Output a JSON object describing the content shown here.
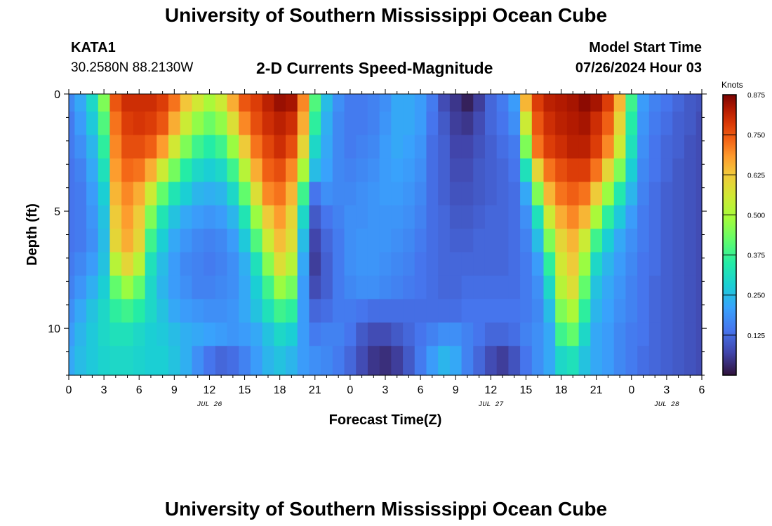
{
  "header": {
    "title": "University of Southern Mississippi Ocean Cube",
    "station": "KATA1",
    "coords": "30.2580N  88.2130W",
    "plot_title": "2-D Currents Speed-Magnitude",
    "model_label": "Model Start Time",
    "model_time": "07/26/2024 Hour 03"
  },
  "footer": {
    "title": "University of Southern Mississippi Ocean Cube"
  },
  "chart_data": {
    "type": "heatmap",
    "title": "2-D Currents Speed-Magnitude",
    "xlabel": "Forecast Time(Z)",
    "ylabel": "Depth (ft)",
    "x_unit": "forecast hour from 07/26/2024 00Z",
    "xlim": [
      0,
      54
    ],
    "ylim": [
      0,
      12
    ],
    "y_reversed": true,
    "x_ticks": [
      0,
      3,
      6,
      9,
      12,
      15,
      18,
      21,
      24,
      27,
      30,
      33,
      36,
      39,
      42,
      45,
      48,
      51,
      54
    ],
    "x_tick_labels": [
      "0",
      "3",
      "6",
      "9",
      "12",
      "15",
      "18",
      "21",
      "0",
      "3",
      "6",
      "9",
      "12",
      "15",
      "18",
      "21",
      "0",
      "3",
      "6"
    ],
    "y_ticks": [
      0,
      5,
      10
    ],
    "y_tick_labels": [
      "0",
      "5",
      "10"
    ],
    "date_labels": [
      {
        "hour": 12,
        "label": "JUL 26"
      },
      {
        "hour": 36,
        "label": "JUL 27"
      },
      {
        "hour": 51,
        "label": "JUL 28"
      }
    ],
    "colorbar": {
      "label": "Knots",
      "min": 0,
      "max": 0.875,
      "ticks": [
        0.125,
        0.25,
        0.375,
        0.5,
        0.625,
        0.75,
        0.875
      ],
      "tick_labels": [
        "0.125",
        "0.250",
        "0.375",
        "0.500",
        "0.625",
        "0.750",
        "0.875"
      ]
    },
    "depths": [
      0.25,
      1.25,
      2.25,
      3.25,
      4.25,
      5.25,
      6.25,
      7.25,
      8.25,
      9.25,
      10.25,
      11.25
    ],
    "hours": [
      0,
      1,
      2,
      3,
      4,
      5,
      6,
      7,
      8,
      9,
      10,
      11,
      12,
      13,
      14,
      15,
      16,
      17,
      18,
      19,
      20,
      21,
      22,
      23,
      24,
      25,
      26,
      27,
      28,
      29,
      30,
      31,
      32,
      33,
      34,
      35,
      36,
      37,
      38,
      39,
      40,
      41,
      42,
      43,
      44,
      45,
      46,
      47,
      48,
      49,
      50,
      51,
      52,
      53,
      54
    ],
    "speed_knots": [
      [
        0.17,
        0.22,
        0.3,
        0.45,
        0.75,
        0.8,
        0.8,
        0.8,
        0.78,
        0.72,
        0.63,
        0.56,
        0.5,
        0.55,
        0.66,
        0.75,
        0.78,
        0.82,
        0.85,
        0.84,
        0.7,
        0.4,
        0.25,
        0.18,
        0.15,
        0.15,
        0.16,
        0.18,
        0.22,
        0.22,
        0.2,
        0.15,
        0.08,
        0.05,
        0.02,
        0.06,
        0.12,
        0.15,
        0.2,
        0.65,
        0.78,
        0.82,
        0.83,
        0.84,
        0.86,
        0.84,
        0.78,
        0.65,
        0.38,
        0.2,
        0.16,
        0.14,
        0.12,
        0.1,
        0.09
      ],
      [
        0.15,
        0.2,
        0.27,
        0.4,
        0.72,
        0.78,
        0.79,
        0.78,
        0.75,
        0.66,
        0.55,
        0.47,
        0.43,
        0.47,
        0.58,
        0.7,
        0.76,
        0.8,
        0.82,
        0.8,
        0.66,
        0.36,
        0.23,
        0.17,
        0.15,
        0.15,
        0.16,
        0.19,
        0.22,
        0.22,
        0.2,
        0.14,
        0.1,
        0.06,
        0.05,
        0.08,
        0.12,
        0.14,
        0.18,
        0.55,
        0.75,
        0.8,
        0.82,
        0.83,
        0.84,
        0.8,
        0.74,
        0.6,
        0.35,
        0.19,
        0.15,
        0.13,
        0.11,
        0.1,
        0.08
      ],
      [
        0.15,
        0.18,
        0.24,
        0.36,
        0.7,
        0.76,
        0.76,
        0.74,
        0.68,
        0.56,
        0.45,
        0.38,
        0.35,
        0.38,
        0.48,
        0.62,
        0.72,
        0.77,
        0.8,
        0.76,
        0.6,
        0.3,
        0.22,
        0.17,
        0.15,
        0.16,
        0.17,
        0.2,
        0.22,
        0.21,
        0.19,
        0.13,
        0.11,
        0.07,
        0.07,
        0.09,
        0.11,
        0.13,
        0.15,
        0.45,
        0.72,
        0.78,
        0.8,
        0.82,
        0.82,
        0.78,
        0.7,
        0.55,
        0.32,
        0.18,
        0.14,
        0.12,
        0.11,
        0.09,
        0.08
      ],
      [
        0.14,
        0.16,
        0.22,
        0.32,
        0.68,
        0.73,
        0.72,
        0.66,
        0.55,
        0.44,
        0.35,
        0.3,
        0.28,
        0.3,
        0.38,
        0.52,
        0.66,
        0.74,
        0.76,
        0.7,
        0.5,
        0.25,
        0.21,
        0.17,
        0.16,
        0.17,
        0.18,
        0.2,
        0.21,
        0.2,
        0.18,
        0.13,
        0.11,
        0.08,
        0.08,
        0.1,
        0.11,
        0.12,
        0.14,
        0.32,
        0.6,
        0.72,
        0.76,
        0.78,
        0.78,
        0.72,
        0.6,
        0.45,
        0.28,
        0.17,
        0.14,
        0.12,
        0.1,
        0.09,
        0.08
      ],
      [
        0.14,
        0.15,
        0.2,
        0.28,
        0.65,
        0.7,
        0.66,
        0.55,
        0.42,
        0.33,
        0.28,
        0.24,
        0.23,
        0.24,
        0.3,
        0.42,
        0.58,
        0.7,
        0.72,
        0.65,
        0.38,
        0.14,
        0.18,
        0.17,
        0.17,
        0.18,
        0.19,
        0.2,
        0.2,
        0.19,
        0.17,
        0.13,
        0.11,
        0.09,
        0.09,
        0.1,
        0.11,
        0.12,
        0.13,
        0.22,
        0.45,
        0.65,
        0.72,
        0.74,
        0.72,
        0.62,
        0.48,
        0.34,
        0.24,
        0.16,
        0.13,
        0.11,
        0.1,
        0.09,
        0.08
      ],
      [
        0.14,
        0.15,
        0.19,
        0.26,
        0.62,
        0.68,
        0.62,
        0.45,
        0.33,
        0.26,
        0.22,
        0.2,
        0.19,
        0.2,
        0.24,
        0.33,
        0.48,
        0.62,
        0.68,
        0.6,
        0.3,
        0.1,
        0.14,
        0.16,
        0.18,
        0.18,
        0.19,
        0.19,
        0.19,
        0.18,
        0.16,
        0.13,
        0.12,
        0.1,
        0.1,
        0.11,
        0.12,
        0.12,
        0.13,
        0.18,
        0.32,
        0.55,
        0.66,
        0.7,
        0.65,
        0.5,
        0.36,
        0.27,
        0.2,
        0.15,
        0.13,
        0.11,
        0.1,
        0.09,
        0.08
      ],
      [
        0.14,
        0.15,
        0.18,
        0.25,
        0.6,
        0.66,
        0.6,
        0.38,
        0.28,
        0.22,
        0.19,
        0.17,
        0.16,
        0.17,
        0.2,
        0.27,
        0.4,
        0.55,
        0.64,
        0.58,
        0.25,
        0.07,
        0.12,
        0.15,
        0.18,
        0.19,
        0.19,
        0.19,
        0.18,
        0.17,
        0.15,
        0.13,
        0.12,
        0.11,
        0.11,
        0.12,
        0.12,
        0.12,
        0.13,
        0.16,
        0.25,
        0.45,
        0.6,
        0.65,
        0.55,
        0.38,
        0.28,
        0.22,
        0.18,
        0.15,
        0.13,
        0.11,
        0.1,
        0.09,
        0.08
      ],
      [
        0.15,
        0.17,
        0.2,
        0.26,
        0.52,
        0.6,
        0.52,
        0.32,
        0.25,
        0.2,
        0.17,
        0.16,
        0.15,
        0.16,
        0.18,
        0.23,
        0.32,
        0.46,
        0.58,
        0.52,
        0.22,
        0.06,
        0.11,
        0.15,
        0.18,
        0.19,
        0.19,
        0.18,
        0.17,
        0.16,
        0.14,
        0.13,
        0.12,
        0.12,
        0.12,
        0.12,
        0.12,
        0.12,
        0.13,
        0.15,
        0.2,
        0.36,
        0.56,
        0.62,
        0.48,
        0.3,
        0.24,
        0.2,
        0.17,
        0.14,
        0.13,
        0.11,
        0.1,
        0.09,
        0.08
      ],
      [
        0.16,
        0.19,
        0.23,
        0.28,
        0.42,
        0.48,
        0.42,
        0.3,
        0.24,
        0.2,
        0.18,
        0.16,
        0.16,
        0.17,
        0.18,
        0.22,
        0.28,
        0.38,
        0.48,
        0.44,
        0.2,
        0.08,
        0.11,
        0.15,
        0.17,
        0.18,
        0.18,
        0.17,
        0.16,
        0.15,
        0.14,
        0.13,
        0.12,
        0.12,
        0.13,
        0.13,
        0.13,
        0.13,
        0.13,
        0.15,
        0.18,
        0.3,
        0.52,
        0.58,
        0.42,
        0.26,
        0.22,
        0.19,
        0.16,
        0.14,
        0.12,
        0.11,
        0.1,
        0.09,
        0.08
      ],
      [
        0.18,
        0.22,
        0.26,
        0.3,
        0.36,
        0.38,
        0.35,
        0.3,
        0.26,
        0.22,
        0.2,
        0.19,
        0.18,
        0.18,
        0.19,
        0.22,
        0.26,
        0.32,
        0.38,
        0.36,
        0.2,
        0.12,
        0.13,
        0.15,
        0.15,
        0.14,
        0.13,
        0.13,
        0.13,
        0.13,
        0.13,
        0.13,
        0.13,
        0.13,
        0.14,
        0.14,
        0.14,
        0.14,
        0.14,
        0.15,
        0.17,
        0.25,
        0.45,
        0.5,
        0.36,
        0.24,
        0.21,
        0.18,
        0.16,
        0.14,
        0.12,
        0.11,
        0.1,
        0.09,
        0.08
      ],
      [
        0.2,
        0.24,
        0.27,
        0.3,
        0.32,
        0.32,
        0.3,
        0.28,
        0.27,
        0.25,
        0.23,
        0.22,
        0.21,
        0.2,
        0.19,
        0.2,
        0.22,
        0.26,
        0.3,
        0.28,
        0.2,
        0.15,
        0.16,
        0.16,
        0.14,
        0.1,
        0.08,
        0.08,
        0.1,
        0.12,
        0.14,
        0.16,
        0.18,
        0.18,
        0.16,
        0.14,
        0.12,
        0.12,
        0.13,
        0.16,
        0.18,
        0.22,
        0.38,
        0.42,
        0.3,
        0.22,
        0.2,
        0.17,
        0.15,
        0.14,
        0.12,
        0.11,
        0.1,
        0.09,
        0.08
      ],
      [
        0.22,
        0.25,
        0.27,
        0.29,
        0.3,
        0.3,
        0.29,
        0.28,
        0.28,
        0.26,
        0.23,
        0.18,
        0.14,
        0.12,
        0.13,
        0.16,
        0.2,
        0.24,
        0.26,
        0.24,
        0.2,
        0.18,
        0.17,
        0.15,
        0.12,
        0.08,
        0.05,
        0.04,
        0.06,
        0.1,
        0.15,
        0.2,
        0.24,
        0.22,
        0.16,
        0.12,
        0.08,
        0.06,
        0.09,
        0.14,
        0.18,
        0.22,
        0.3,
        0.32,
        0.26,
        0.22,
        0.2,
        0.17,
        0.15,
        0.13,
        0.12,
        0.11,
        0.1,
        0.09,
        0.08
      ]
    ]
  }
}
